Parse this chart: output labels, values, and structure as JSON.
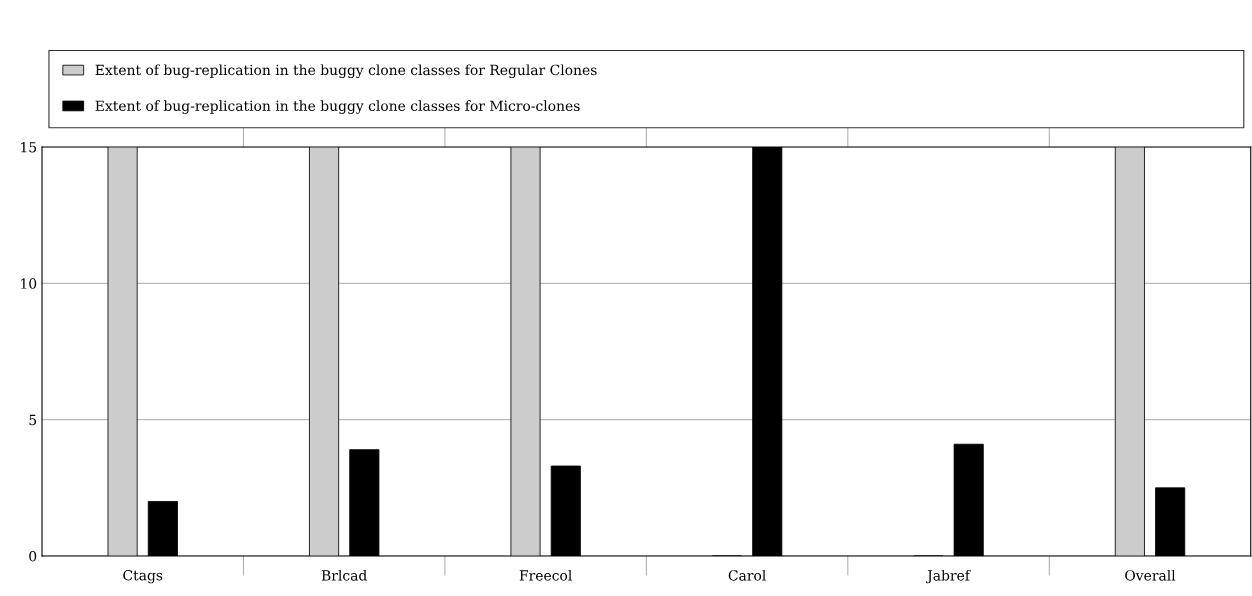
{
  "chart_data": {
    "type": "bar",
    "categories": [
      "Ctags",
      "Brlcad",
      "Freecol",
      "Carol",
      "Jabref",
      "Overall"
    ],
    "series": [
      {
        "name": "Extent of bug-replication in the buggy clone classes for Regular Clones",
        "color": "#cccccc",
        "values": [
          15,
          15,
          15,
          0,
          0,
          15
        ]
      },
      {
        "name": "Extent of bug-replication in the buggy clone classes for Micro-clones",
        "color": "#000000",
        "values": [
          2.0,
          3.9,
          3.3,
          15,
          4.1,
          2.5
        ]
      }
    ],
    "ylim": [
      0,
      15
    ],
    "yticks": [
      0,
      5,
      10,
      15
    ],
    "grid": "y",
    "legend": "top"
  }
}
